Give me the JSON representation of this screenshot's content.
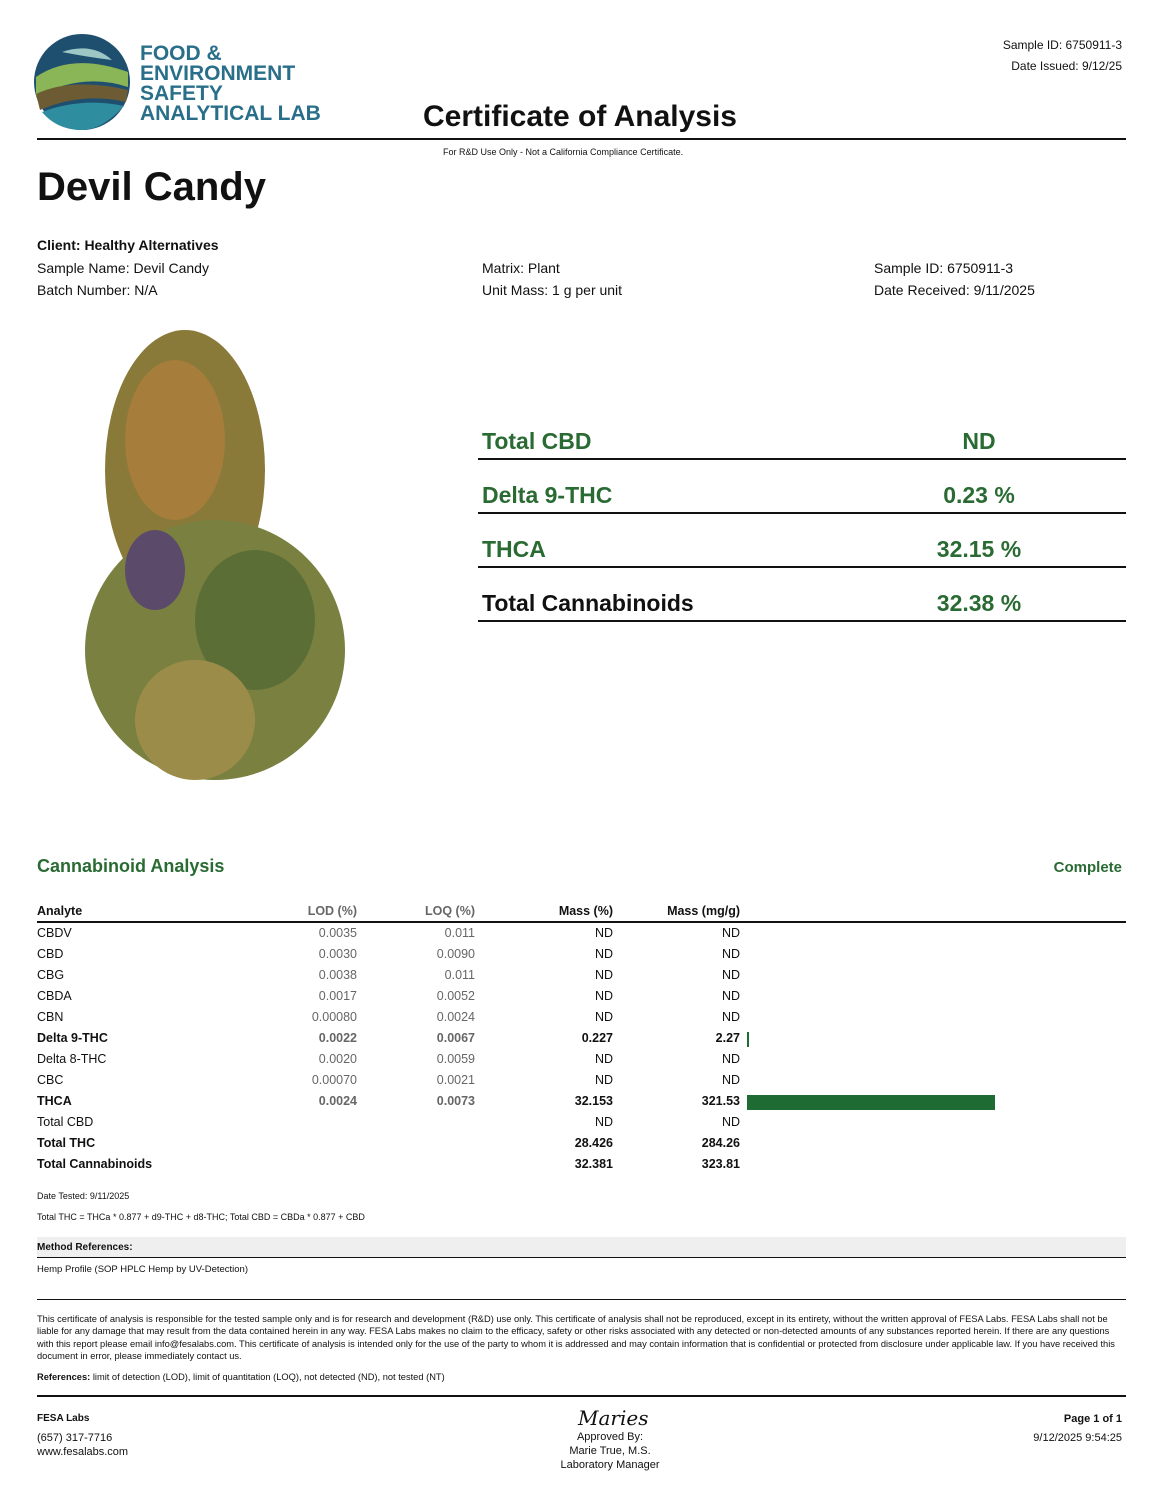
{
  "header": {
    "logo_text": [
      "FOOD &",
      "ENVIRONMENT",
      "SAFETY",
      "ANALYTICAL LAB"
    ],
    "sample_id": "Sample ID: 6750911-3",
    "date_issued": "Date Issued: 9/12/25",
    "title": "Certificate of Analysis",
    "subtitle": "For R&D Use Only - Not a California Compliance Certificate."
  },
  "product_name": "Devil Candy",
  "client": "Client: Healthy Alternatives",
  "info": [
    [
      "Sample Name: Devil Candy",
      "Matrix: Plant",
      "Sample ID: 6750911-3"
    ],
    [
      "Batch Number: N/A",
      "Unit Mass: 1 g per unit",
      "Date Received: 9/11/2025"
    ]
  ],
  "summary": [
    {
      "label": "Total CBD",
      "value": "ND"
    },
    {
      "label": "Delta 9-THC",
      "value": "0.23 %"
    },
    {
      "label": "THCA",
      "value": "32.15 %"
    },
    {
      "label": "Total Cannabinoids",
      "value": "32.38 %"
    }
  ],
  "analysis": {
    "title": "Cannabinoid Analysis",
    "status": "Complete",
    "columns": [
      "Analyte",
      "LOD (%)",
      "LOQ (%)",
      "Mass (%)",
      "Mass (mg/g)"
    ],
    "rows": [
      {
        "cells": [
          "CBDV",
          "0.0035",
          "0.011",
          "ND",
          "ND"
        ]
      },
      {
        "cells": [
          "CBD",
          "0.0030",
          "0.0090",
          "ND",
          "ND"
        ]
      },
      {
        "cells": [
          "CBG",
          "0.0038",
          "0.011",
          "ND",
          "ND"
        ]
      },
      {
        "cells": [
          "CBDA",
          "0.0017",
          "0.0052",
          "ND",
          "ND"
        ]
      },
      {
        "cells": [
          "CBN",
          "0.00080",
          "0.0024",
          "ND",
          "ND"
        ]
      },
      {
        "cells": [
          "Delta 9-THC",
          "0.0022",
          "0.0067",
          "0.227",
          "2.27"
        ],
        "bold": true,
        "bar": true
      },
      {
        "cells": [
          "Delta 8-THC",
          "0.0020",
          "0.0059",
          "ND",
          "ND"
        ]
      },
      {
        "cells": [
          "CBC",
          "0.00070",
          "0.0021",
          "ND",
          "ND"
        ]
      },
      {
        "cells": [
          "THCA",
          "0.0024",
          "0.0073",
          "32.153",
          "321.53"
        ],
        "bold": true,
        "bar": true
      },
      {
        "cells": [
          "Total CBD",
          "",
          "",
          "ND",
          "ND"
        ]
      },
      {
        "cells": [
          "Total THC",
          "",
          "",
          "28.426",
          "284.26"
        ],
        "bold": true
      },
      {
        "cells": [
          "Total Cannabinoids",
          "",
          "",
          "32.381",
          "323.81"
        ],
        "bold": true
      }
    ],
    "bar_color": "#1e6b34",
    "date_tested": "Date Tested: 9/11/2025",
    "formula": "Total THC = THCa * 0.877 + d9-THC + d8-THC; Total CBD = CBDa * 0.877 + CBD"
  },
  "method": {
    "title": "Method References:",
    "text": "Hemp Profile (SOP HPLC Hemp by UV-Detection)"
  },
  "disclaimer": "This certificate of analysis is responsible for the tested sample only and is for research and development (R&D) use only. This certificate of analysis shall not be reproduced, except in its entirety, without the written approval of FESA Labs. FESA Labs shall not be liable for any damage that may result from the data contained herein in any way. FESA Labs makes no claim to the efficacy, safety or other risks associated with any detected or non-detected amounts of any substances reported herein. If there are any questions with this report please email info@fesalabs.com. This certificate of analysis is intended only for the use of the party to whom it is addressed and may contain information that is confidential or protected from disclosure under applicable law. If you have received this document in error, please immediately contact us.",
  "references": {
    "label": "References:",
    "text": "limit of detection (LOD), limit of quantitation (LOQ), not detected (ND), not tested (NT)"
  },
  "footer": {
    "lab": "FESA Labs",
    "phone": "(657) 317-7716",
    "web": "www.fesalabs.com",
    "signature": "Maries",
    "approved": [
      "Approved By:",
      "Marie True, M.S.",
      "Laboratory Manager"
    ],
    "page": "Page 1 of 1",
    "timestamp": "9/12/2025 9:54:25"
  }
}
